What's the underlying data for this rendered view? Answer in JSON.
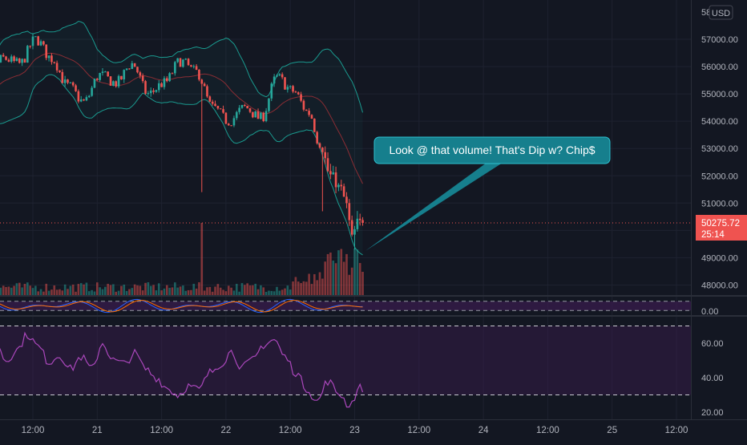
{
  "chart_data": {
    "type": "candlestick",
    "currency_badge": "USD",
    "price_axis": {
      "top_label_partial": "58",
      "ticks": [
        57000,
        56000,
        55000,
        54000,
        53000,
        52000,
        51000,
        50000,
        49000,
        48000
      ],
      "tick_labels": [
        "57000.00",
        "56000.00",
        "55000.00",
        "54000.00",
        "53000.00",
        "52000.00",
        "51000.00",
        "",
        "49000.00",
        "48000.00"
      ],
      "range": [
        47700,
        58200
      ]
    },
    "last_price": {
      "value": 50275.72,
      "label": "50275.72",
      "countdown": "25:14",
      "color": "#ef5350"
    },
    "time_axis": {
      "labels": [
        "12:00",
        "21",
        "12:00",
        "22",
        "12:00",
        "23",
        "12:00",
        "24",
        "12:00",
        "25",
        "12:00"
      ],
      "label_positions_hours": [
        12,
        24,
        36,
        48,
        60,
        72,
        84,
        96,
        108,
        120,
        132
      ]
    },
    "candles_anchor_closes": [
      [
        0,
        55500
      ],
      [
        2,
        54200
      ],
      [
        4,
        55600
      ],
      [
        7,
        56300
      ],
      [
        10,
        56100
      ],
      [
        13,
        57000
      ],
      [
        16,
        56300
      ],
      [
        19,
        55300
      ],
      [
        22,
        54700
      ],
      [
        25,
        55700
      ],
      [
        28,
        55400
      ],
      [
        31,
        56100
      ],
      [
        34,
        55000
      ],
      [
        37,
        55400
      ],
      [
        40,
        56200
      ],
      [
        43,
        55800
      ],
      [
        46,
        54500
      ],
      [
        49,
        54000
      ],
      [
        52,
        54500
      ],
      [
        55,
        54100
      ],
      [
        58,
        55600
      ],
      [
        61,
        55100
      ],
      [
        64,
        54300
      ],
      [
        66,
        53200
      ],
      [
        68,
        52000
      ],
      [
        70,
        51500
      ],
      [
        71,
        50900
      ],
      [
        72,
        49700
      ],
      [
        73,
        50275.72
      ]
    ],
    "annotation": {
      "text": "Look @ that volume! That's Dip w? Chip$",
      "pointer": {
        "hour": 74.0,
        "price": 49250
      },
      "color": "#167f8d"
    },
    "stoch_indicator": {
      "series": [
        "%K",
        "%D"
      ],
      "levels": [
        80,
        20
      ],
      "band": [
        20,
        80
      ],
      "range": [
        0,
        100
      ]
    },
    "rsi_indicator": {
      "range": [
        18,
        72
      ],
      "ticks": [
        60,
        40,
        20
      ],
      "tick_labels": [
        "60.00",
        "40.00",
        "20.00"
      ],
      "levels": [
        70,
        30
      ],
      "anchors": [
        [
          0,
          48
        ],
        [
          1,
          37
        ],
        [
          3,
          59
        ],
        [
          5,
          62
        ],
        [
          7,
          50
        ],
        [
          9,
          56
        ],
        [
          11,
          65
        ],
        [
          13,
          58
        ],
        [
          15,
          49
        ],
        [
          17,
          53
        ],
        [
          19,
          45
        ],
        [
          21,
          52
        ],
        [
          23,
          45
        ],
        [
          25,
          60
        ],
        [
          27,
          50
        ],
        [
          29,
          48
        ],
        [
          31,
          54
        ],
        [
          33,
          45
        ],
        [
          35,
          40
        ],
        [
          37,
          34
        ],
        [
          39,
          30
        ],
        [
          41,
          35
        ],
        [
          43,
          33
        ],
        [
          45,
          43
        ],
        [
          47,
          48
        ],
        [
          49,
          55
        ],
        [
          51,
          46
        ],
        [
          53,
          50
        ],
        [
          55,
          59
        ],
        [
          57,
          62
        ],
        [
          59,
          52
        ],
        [
          61,
          43
        ],
        [
          63,
          34
        ],
        [
          65,
          26
        ],
        [
          67,
          38
        ],
        [
          69,
          31
        ],
        [
          71,
          24
        ],
        [
          73,
          34
        ]
      ],
      "color": "#ab47bc"
    },
    "colors": {
      "up": "#26a69a",
      "down": "#ef5350",
      "bollinger": "#1a9a8f",
      "basis": "#8a2d34",
      "stoch_k": "#2962ff",
      "stoch_d": "#ff6d00",
      "band_fill": "#3b1c4f"
    }
  }
}
